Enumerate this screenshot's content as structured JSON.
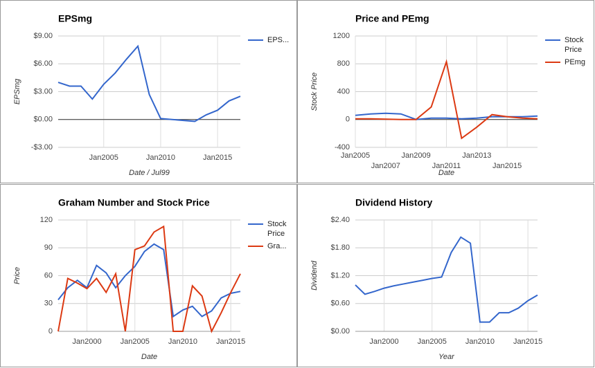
{
  "chart_data": [
    {
      "type": "line",
      "title": "EPSmg",
      "x_label": "Date / Jul99",
      "y_label": "EPSmg",
      "x": [
        2001,
        2002,
        2003,
        2004,
        2005,
        2006,
        2007,
        2008,
        2009,
        2010,
        2011,
        2012,
        2013,
        2014,
        2015,
        2016,
        2017
      ],
      "series": [
        {
          "name": "EPS...",
          "color": "#3366cc",
          "values": [
            4.0,
            3.6,
            3.6,
            2.2,
            3.8,
            5.0,
            6.5,
            7.9,
            2.7,
            0.1,
            0.0,
            -0.1,
            -0.2,
            0.5,
            1.0,
            2.0,
            2.5
          ]
        }
      ],
      "xlim": [
        2001,
        2017
      ],
      "ylim": [
        -3,
        9
      ],
      "xticks": [
        {
          "value": 2005,
          "label": "Jan2005"
        },
        {
          "value": 2010,
          "label": "Jan2010"
        },
        {
          "value": 2015,
          "label": "Jan2015"
        }
      ],
      "yticks": [
        {
          "value": 9,
          "label": "$9.00"
        },
        {
          "value": 6,
          "label": "$6.00"
        },
        {
          "value": 3,
          "label": "$3.00"
        },
        {
          "value": 0,
          "label": "$0.00"
        },
        {
          "value": -3,
          "label": "-$3.00"
        }
      ],
      "grid": true,
      "legend": "right"
    },
    {
      "type": "line",
      "title": "Price and PEmg",
      "x_label": "Date",
      "y_label": "Stock Price",
      "x": [
        2005,
        2006,
        2007,
        2008,
        2009,
        2010,
        2011,
        2012,
        2013,
        2014,
        2015,
        2016,
        2017
      ],
      "series": [
        {
          "name": "Stock Price",
          "color": "#3366cc",
          "values": [
            60,
            80,
            90,
            80,
            0,
            20,
            20,
            10,
            20,
            40,
            40,
            40,
            50
          ]
        },
        {
          "name": "PEmg",
          "color": "#dc3912",
          "values": [
            10,
            10,
            5,
            0,
            0,
            180,
            830,
            -270,
            -110,
            70,
            40,
            20,
            10
          ]
        }
      ],
      "xlim": [
        2005,
        2017
      ],
      "ylim": [
        -400,
        1200
      ],
      "xticks": [
        {
          "value": 2005,
          "label": "Jan2005"
        },
        {
          "value": 2007,
          "label": "Jan2007"
        },
        {
          "value": 2009,
          "label": "Jan2009"
        },
        {
          "value": 2011,
          "label": "Jan2011"
        },
        {
          "value": 2013,
          "label": "Jan2013"
        },
        {
          "value": 2015,
          "label": "Jan2015"
        }
      ],
      "yticks": [
        1200,
        800,
        400,
        0,
        -400
      ],
      "grid": true,
      "legend": "right"
    },
    {
      "type": "line",
      "title": "Graham Number and Stock Price",
      "x_label": "Date",
      "y_label": "Price",
      "x": [
        1997,
        1998,
        1999,
        2000,
        2001,
        2002,
        2003,
        2004,
        2005,
        2006,
        2007,
        2008,
        2009,
        2010,
        2011,
        2012,
        2013,
        2014,
        2015,
        2016
      ],
      "series": [
        {
          "name": "Stock Price",
          "color": "#3366cc",
          "values": [
            34,
            47,
            55,
            47,
            71,
            63,
            47,
            60,
            70,
            86,
            94,
            88,
            16,
            23,
            27,
            16,
            22,
            36,
            41,
            43
          ]
        },
        {
          "name": "Gra...",
          "color": "#dc3912",
          "values": [
            0,
            57,
            52,
            46,
            57,
            42,
            62,
            0,
            88,
            92,
            107,
            113,
            0,
            0,
            49,
            38,
            0,
            20,
            42,
            62
          ]
        }
      ],
      "xlim": [
        1997,
        2016
      ],
      "ylim": [
        0,
        120
      ],
      "xticks": [
        {
          "value": 2000,
          "label": "Jan2000"
        },
        {
          "value": 2005,
          "label": "Jan2005"
        },
        {
          "value": 2010,
          "label": "Jan2010"
        },
        {
          "value": 2015,
          "label": "Jan2015"
        }
      ],
      "yticks": [
        120,
        90,
        60,
        30,
        0
      ],
      "grid": true,
      "legend": "right"
    },
    {
      "type": "line",
      "title": "Dividend History",
      "x_label": "Year",
      "y_label": "Dividend",
      "x": [
        1997,
        1998,
        1999,
        2000,
        2001,
        2002,
        2003,
        2004,
        2005,
        2006,
        2007,
        2008,
        2009,
        2010,
        2011,
        2012,
        2013,
        2014,
        2015,
        2016
      ],
      "series": [
        {
          "color": "#3366cc",
          "values": [
            1.0,
            0.8,
            0.86,
            0.93,
            0.98,
            1.02,
            1.06,
            1.1,
            1.14,
            1.17,
            1.7,
            2.03,
            1.9,
            0.2,
            0.2,
            0.4,
            0.4,
            0.5,
            0.66,
            0.78
          ]
        }
      ],
      "xlim": [
        1997,
        2016
      ],
      "ylim": [
        0,
        2.4
      ],
      "xticks": [
        {
          "value": 2000,
          "label": "Jan2000"
        },
        {
          "value": 2005,
          "label": "Jan2005"
        },
        {
          "value": 2010,
          "label": "Jan2010"
        },
        {
          "value": 2015,
          "label": "Jan2015"
        }
      ],
      "yticks": [
        {
          "value": 2.4,
          "label": "$2.40"
        },
        {
          "value": 1.8,
          "label": "$1.80"
        },
        {
          "value": 1.2,
          "label": "$1.20"
        },
        {
          "value": 0.6,
          "label": "$0.60"
        },
        {
          "value": 0,
          "label": "$0.00"
        }
      ],
      "grid": true
    }
  ]
}
